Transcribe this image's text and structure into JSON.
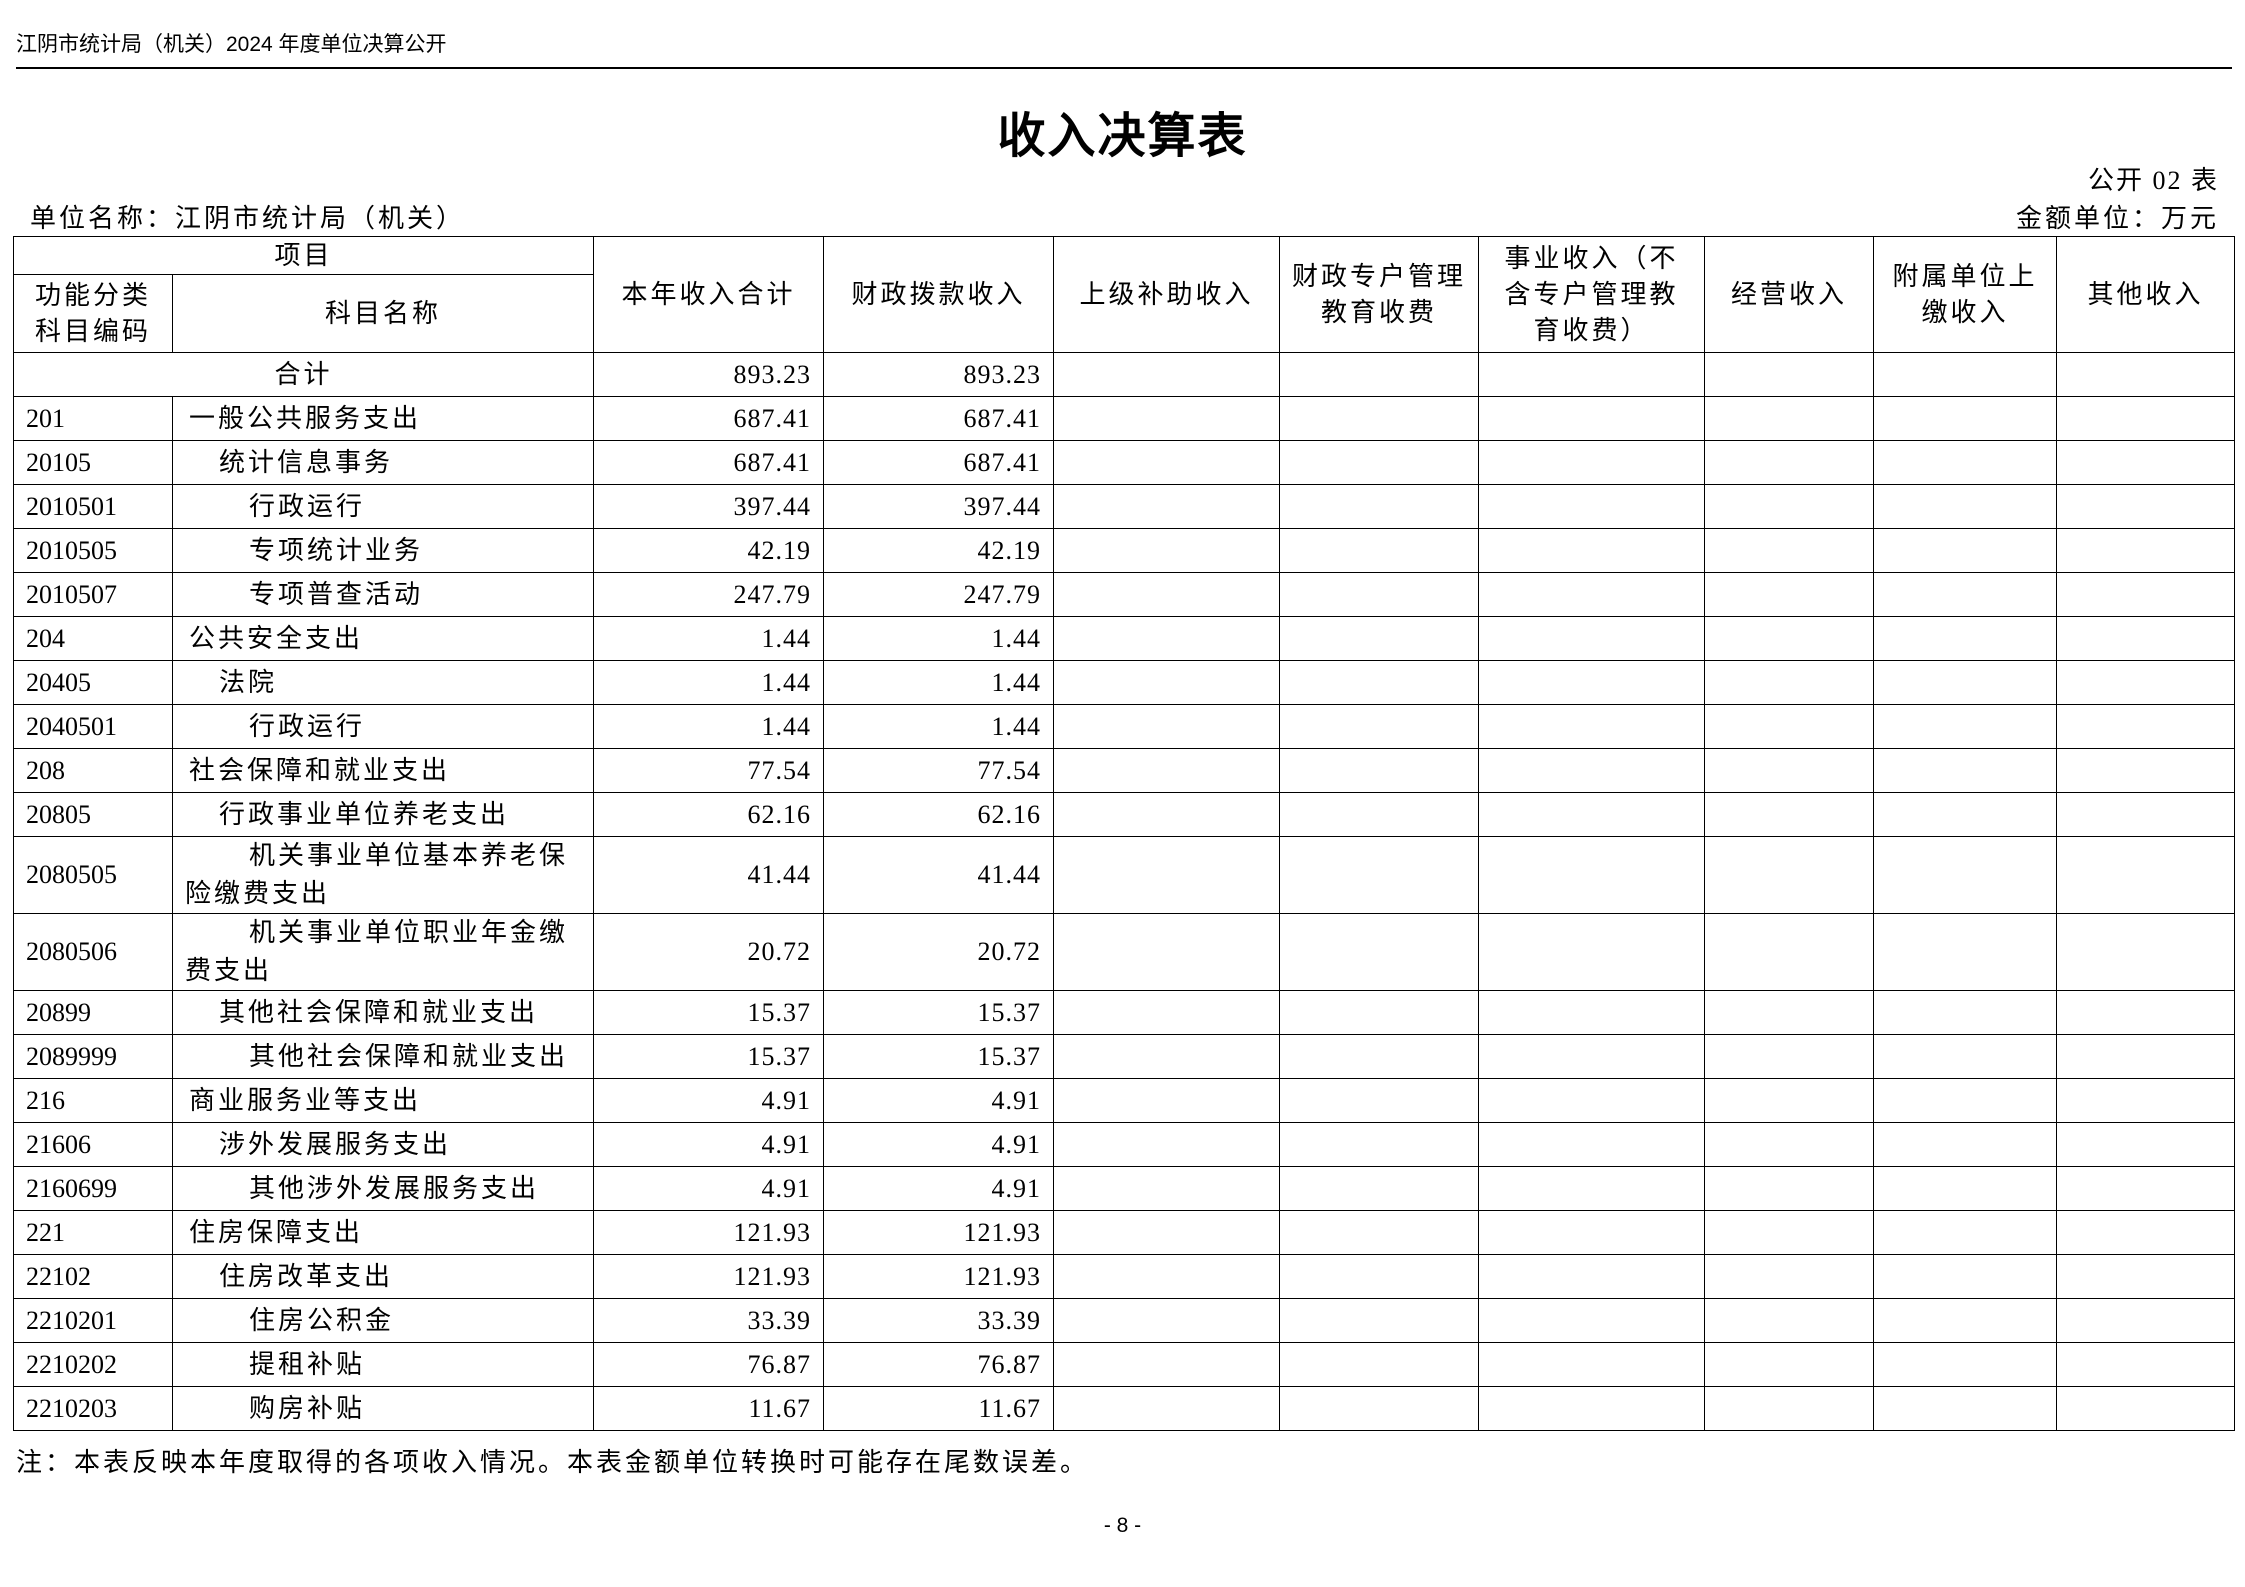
{
  "running_header": "江阴市统计局（机关）2024 年度单位决算公开",
  "title": "收入决算表",
  "form_no": "公开 02 表",
  "unit_name": "单位名称：江阴市统计局（机关）",
  "amount_unit": "金额单位：万元",
  "columns": {
    "item": "项目",
    "code": "功能分类科目编码",
    "name": "科目名称",
    "total": "本年收入合计",
    "fiscal": "财政拨款收入",
    "superior": "上级补助收入",
    "special_edu": "财政专户管理教育收费",
    "business": "事业收入（不含专户管理教育收费）",
    "operating": "经营收入",
    "affiliated": "附属单位上缴收入",
    "other": "其他收入"
  },
  "total_row": {
    "label": "合计",
    "total": "893.23",
    "fiscal": "893.23"
  },
  "rows": [
    {
      "code": "201",
      "name": "一般公共服务支出",
      "level": 1,
      "total": "687.41",
      "fiscal": "687.41"
    },
    {
      "code": "20105",
      "name": "统计信息事务",
      "level": 2,
      "total": "687.41",
      "fiscal": "687.41"
    },
    {
      "code": "2010501",
      "name": "行政运行",
      "level": 3,
      "total": "397.44",
      "fiscal": "397.44"
    },
    {
      "code": "2010505",
      "name": "专项统计业务",
      "level": 3,
      "total": "42.19",
      "fiscal": "42.19"
    },
    {
      "code": "2010507",
      "name": "专项普查活动",
      "level": 3,
      "total": "247.79",
      "fiscal": "247.79"
    },
    {
      "code": "204",
      "name": "公共安全支出",
      "level": 1,
      "total": "1.44",
      "fiscal": "1.44"
    },
    {
      "code": "20405",
      "name": "法院",
      "level": 2,
      "total": "1.44",
      "fiscal": "1.44"
    },
    {
      "code": "2040501",
      "name": "行政运行",
      "level": 3,
      "total": "1.44",
      "fiscal": "1.44"
    },
    {
      "code": "208",
      "name": "社会保障和就业支出",
      "level": 1,
      "total": "77.54",
      "fiscal": "77.54"
    },
    {
      "code": "20805",
      "name": "行政事业单位养老支出",
      "level": 2,
      "total": "62.16",
      "fiscal": "62.16"
    },
    {
      "code": "2080505",
      "name": "机关事业单位基本养老保险缴费支出",
      "level": 3,
      "total": "41.44",
      "fiscal": "41.44"
    },
    {
      "code": "2080506",
      "name": "机关事业单位职业年金缴费支出",
      "level": 3,
      "total": "20.72",
      "fiscal": "20.72"
    },
    {
      "code": "20899",
      "name": "其他社会保障和就业支出",
      "level": 2,
      "total": "15.37",
      "fiscal": "15.37"
    },
    {
      "code": "2089999",
      "name": "其他社会保障和就业支出",
      "level": 3,
      "total": "15.37",
      "fiscal": "15.37"
    },
    {
      "code": "216",
      "name": "商业服务业等支出",
      "level": 1,
      "total": "4.91",
      "fiscal": "4.91"
    },
    {
      "code": "21606",
      "name": "涉外发展服务支出",
      "level": 2,
      "total": "4.91",
      "fiscal": "4.91"
    },
    {
      "code": "2160699",
      "name": "其他涉外发展服务支出",
      "level": 3,
      "total": "4.91",
      "fiscal": "4.91"
    },
    {
      "code": "221",
      "name": "住房保障支出",
      "level": 1,
      "total": "121.93",
      "fiscal": "121.93"
    },
    {
      "code": "22102",
      "name": "住房改革支出",
      "level": 2,
      "total": "121.93",
      "fiscal": "121.93"
    },
    {
      "code": "2210201",
      "name": "住房公积金",
      "level": 3,
      "total": "33.39",
      "fiscal": "33.39"
    },
    {
      "code": "2210202",
      "name": "提租补贴",
      "level": 3,
      "total": "76.87",
      "fiscal": "76.87"
    },
    {
      "code": "2210203",
      "name": "购房补贴",
      "level": 3,
      "total": "11.67",
      "fiscal": "11.67"
    }
  ],
  "note": "注：本表反映本年度取得的各项收入情况。本表金额单位转换时可能存在尾数误差。",
  "page_number": "- 8 -"
}
